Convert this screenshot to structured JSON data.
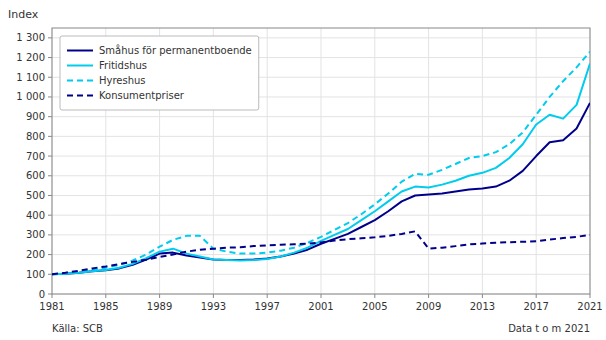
{
  "chart_data": {
    "type": "line",
    "ylabel": "Index",
    "annotations": [
      "Källa: SCB",
      "Data t o m 2021"
    ],
    "x": [
      1981,
      1982,
      1983,
      1984,
      1985,
      1986,
      1987,
      1988,
      1989,
      1990,
      1991,
      1992,
      1993,
      1994,
      1995,
      1996,
      1997,
      1998,
      1999,
      2000,
      2001,
      2002,
      2003,
      2004,
      2005,
      2006,
      2007,
      2008,
      2009,
      2010,
      2011,
      2012,
      2013,
      2014,
      2015,
      2016,
      2017,
      2018,
      2019,
      2020,
      2021
    ],
    "xlim": [
      1981,
      2021
    ],
    "xticks": [
      1981,
      1985,
      1989,
      1993,
      1997,
      2001,
      2005,
      2009,
      2013,
      2017,
      2021
    ],
    "ylim": [
      0,
      1350
    ],
    "yticks": [
      0,
      100,
      200,
      300,
      400,
      500,
      600,
      700,
      800,
      900,
      {
        "value": 1000,
        "label": "1 000"
      },
      {
        "value": 1100,
        "label": "1 100"
      },
      {
        "value": 1200,
        "label": "1 200"
      },
      {
        "value": 1300,
        "label": "1 300"
      }
    ],
    "grid": true,
    "legend": "upper left",
    "series": [
      {
        "name": "Småhus för permanentboende",
        "color": "#00008B",
        "line_style": "solid",
        "values": [
          100,
          103,
          108,
          115,
          121,
          130,
          148,
          175,
          205,
          210,
          195,
          185,
          175,
          173,
          172,
          175,
          180,
          190,
          205,
          225,
          255,
          280,
          305,
          340,
          375,
          420,
          470,
          500,
          505,
          510,
          520,
          530,
          535,
          545,
          575,
          625,
          700,
          770,
          780,
          840,
          970
        ]
      },
      {
        "name": "Fritidshus",
        "color": "#00CCEE",
        "line_style": "solid",
        "values": [
          100,
          103,
          108,
          115,
          122,
          133,
          153,
          182,
          215,
          230,
          205,
          190,
          175,
          172,
          170,
          172,
          178,
          190,
          210,
          235,
          270,
          300,
          330,
          375,
          420,
          470,
          520,
          545,
          540,
          555,
          575,
          600,
          615,
          640,
          690,
          760,
          860,
          910,
          890,
          960,
          1170
        ]
      },
      {
        "name": "Hyreshus",
        "color": "#00CCEE",
        "line_style": "dashed",
        "values": [
          100,
          105,
          112,
          122,
          133,
          148,
          170,
          200,
          240,
          275,
          295,
          295,
          230,
          215,
          205,
          205,
          210,
          220,
          235,
          260,
          290,
          325,
          360,
          405,
          455,
          510,
          570,
          610,
          605,
          630,
          660,
          690,
          700,
          720,
          760,
          820,
          910,
          1000,
          1080,
          1150,
          1230
        ]
      },
      {
        "name": "Konsumentpriser",
        "color": "#00008B",
        "line_style": "dashed",
        "values": [
          100,
          108,
          118,
          130,
          140,
          152,
          163,
          174,
          188,
          200,
          215,
          225,
          230,
          235,
          237,
          243,
          247,
          250,
          252,
          255,
          262,
          271,
          278,
          283,
          288,
          295,
          305,
          318,
          230,
          235,
          243,
          252,
          256,
          260,
          263,
          265,
          268,
          276,
          284,
          290,
          300
        ]
      }
    ]
  }
}
